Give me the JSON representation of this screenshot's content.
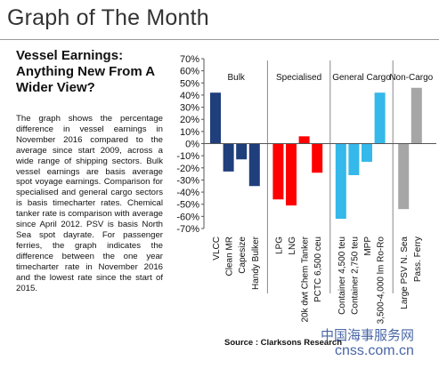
{
  "header": {
    "title": "Graph of The Month"
  },
  "article": {
    "heading": "Vessel Earnings: Anything New From A Wider View?",
    "body": "The graph shows the percentage difference in vessel earnings in November 2016 compared to the average since start 2009, across a wide range of shipping sectors. Bulk vessel earnings are basis average spot voyage earnings. Comparison for specialised and general cargo sectors is basis timecharter rates. Chemical tanker rate is comparison with average since April 2012. PSV is basis North Sea spot dayrate. For passenger ferries, the graph indicates the difference between the one year timecharter rate in November 2016 and the lowest rate since the start of 2015."
  },
  "chart_data": {
    "type": "bar",
    "groups": [
      {
        "name": "Bulk",
        "color": "#1f3e7c",
        "categories": [
          "VLCC",
          "Clean MR",
          "Capesize",
          "Handy Bulker"
        ],
        "values": [
          42,
          -23,
          -13,
          -35
        ]
      },
      {
        "name": "Specialised",
        "color": "#ff0000",
        "categories": [
          "LPG",
          "LNG",
          "20k dwt Chem Tanker",
          "PCTC 6,500 ceu"
        ],
        "values": [
          -46,
          -51,
          6,
          -24
        ]
      },
      {
        "name": "General Cargo",
        "color": "#35b8ea",
        "categories": [
          "Container 4,500 teu",
          "Container 2,750 teu",
          "MPP",
          "3,500-4,000 lm Ro-Ro"
        ],
        "values": [
          -62,
          -26,
          -15,
          42
        ]
      },
      {
        "name": "Non-Cargo",
        "color": "#a6a6a6",
        "categories": [
          "Large PSV  N. Sea",
          "Pass. Ferry"
        ],
        "values": [
          -54,
          46
        ]
      }
    ],
    "ylim": [
      -70,
      70
    ],
    "yticks": [
      {
        "value": 70,
        "label": "70%"
      },
      {
        "value": 60,
        "label": "60%"
      },
      {
        "value": 50,
        "label": "50%"
      },
      {
        "value": 40,
        "label": "40%"
      },
      {
        "value": 30,
        "label": "30%"
      },
      {
        "value": 20,
        "label": "20%"
      },
      {
        "value": 10,
        "label": "10%"
      },
      {
        "value": 0,
        "label": "0%"
      },
      {
        "value": -10,
        "label": "-10%"
      },
      {
        "value": -20,
        "label": "-20%"
      },
      {
        "value": -30,
        "label": "-30%"
      },
      {
        "value": -40,
        "label": "-40%"
      },
      {
        "value": -50,
        "label": "-50%"
      },
      {
        "value": -60,
        "label": "-60%"
      },
      {
        "value": -70,
        "label": "-70%"
      }
    ],
    "source": "Source : Clarksons Research"
  },
  "watermark": {
    "cn": "中国海事服务网",
    "url": "cnss.com.cn"
  }
}
